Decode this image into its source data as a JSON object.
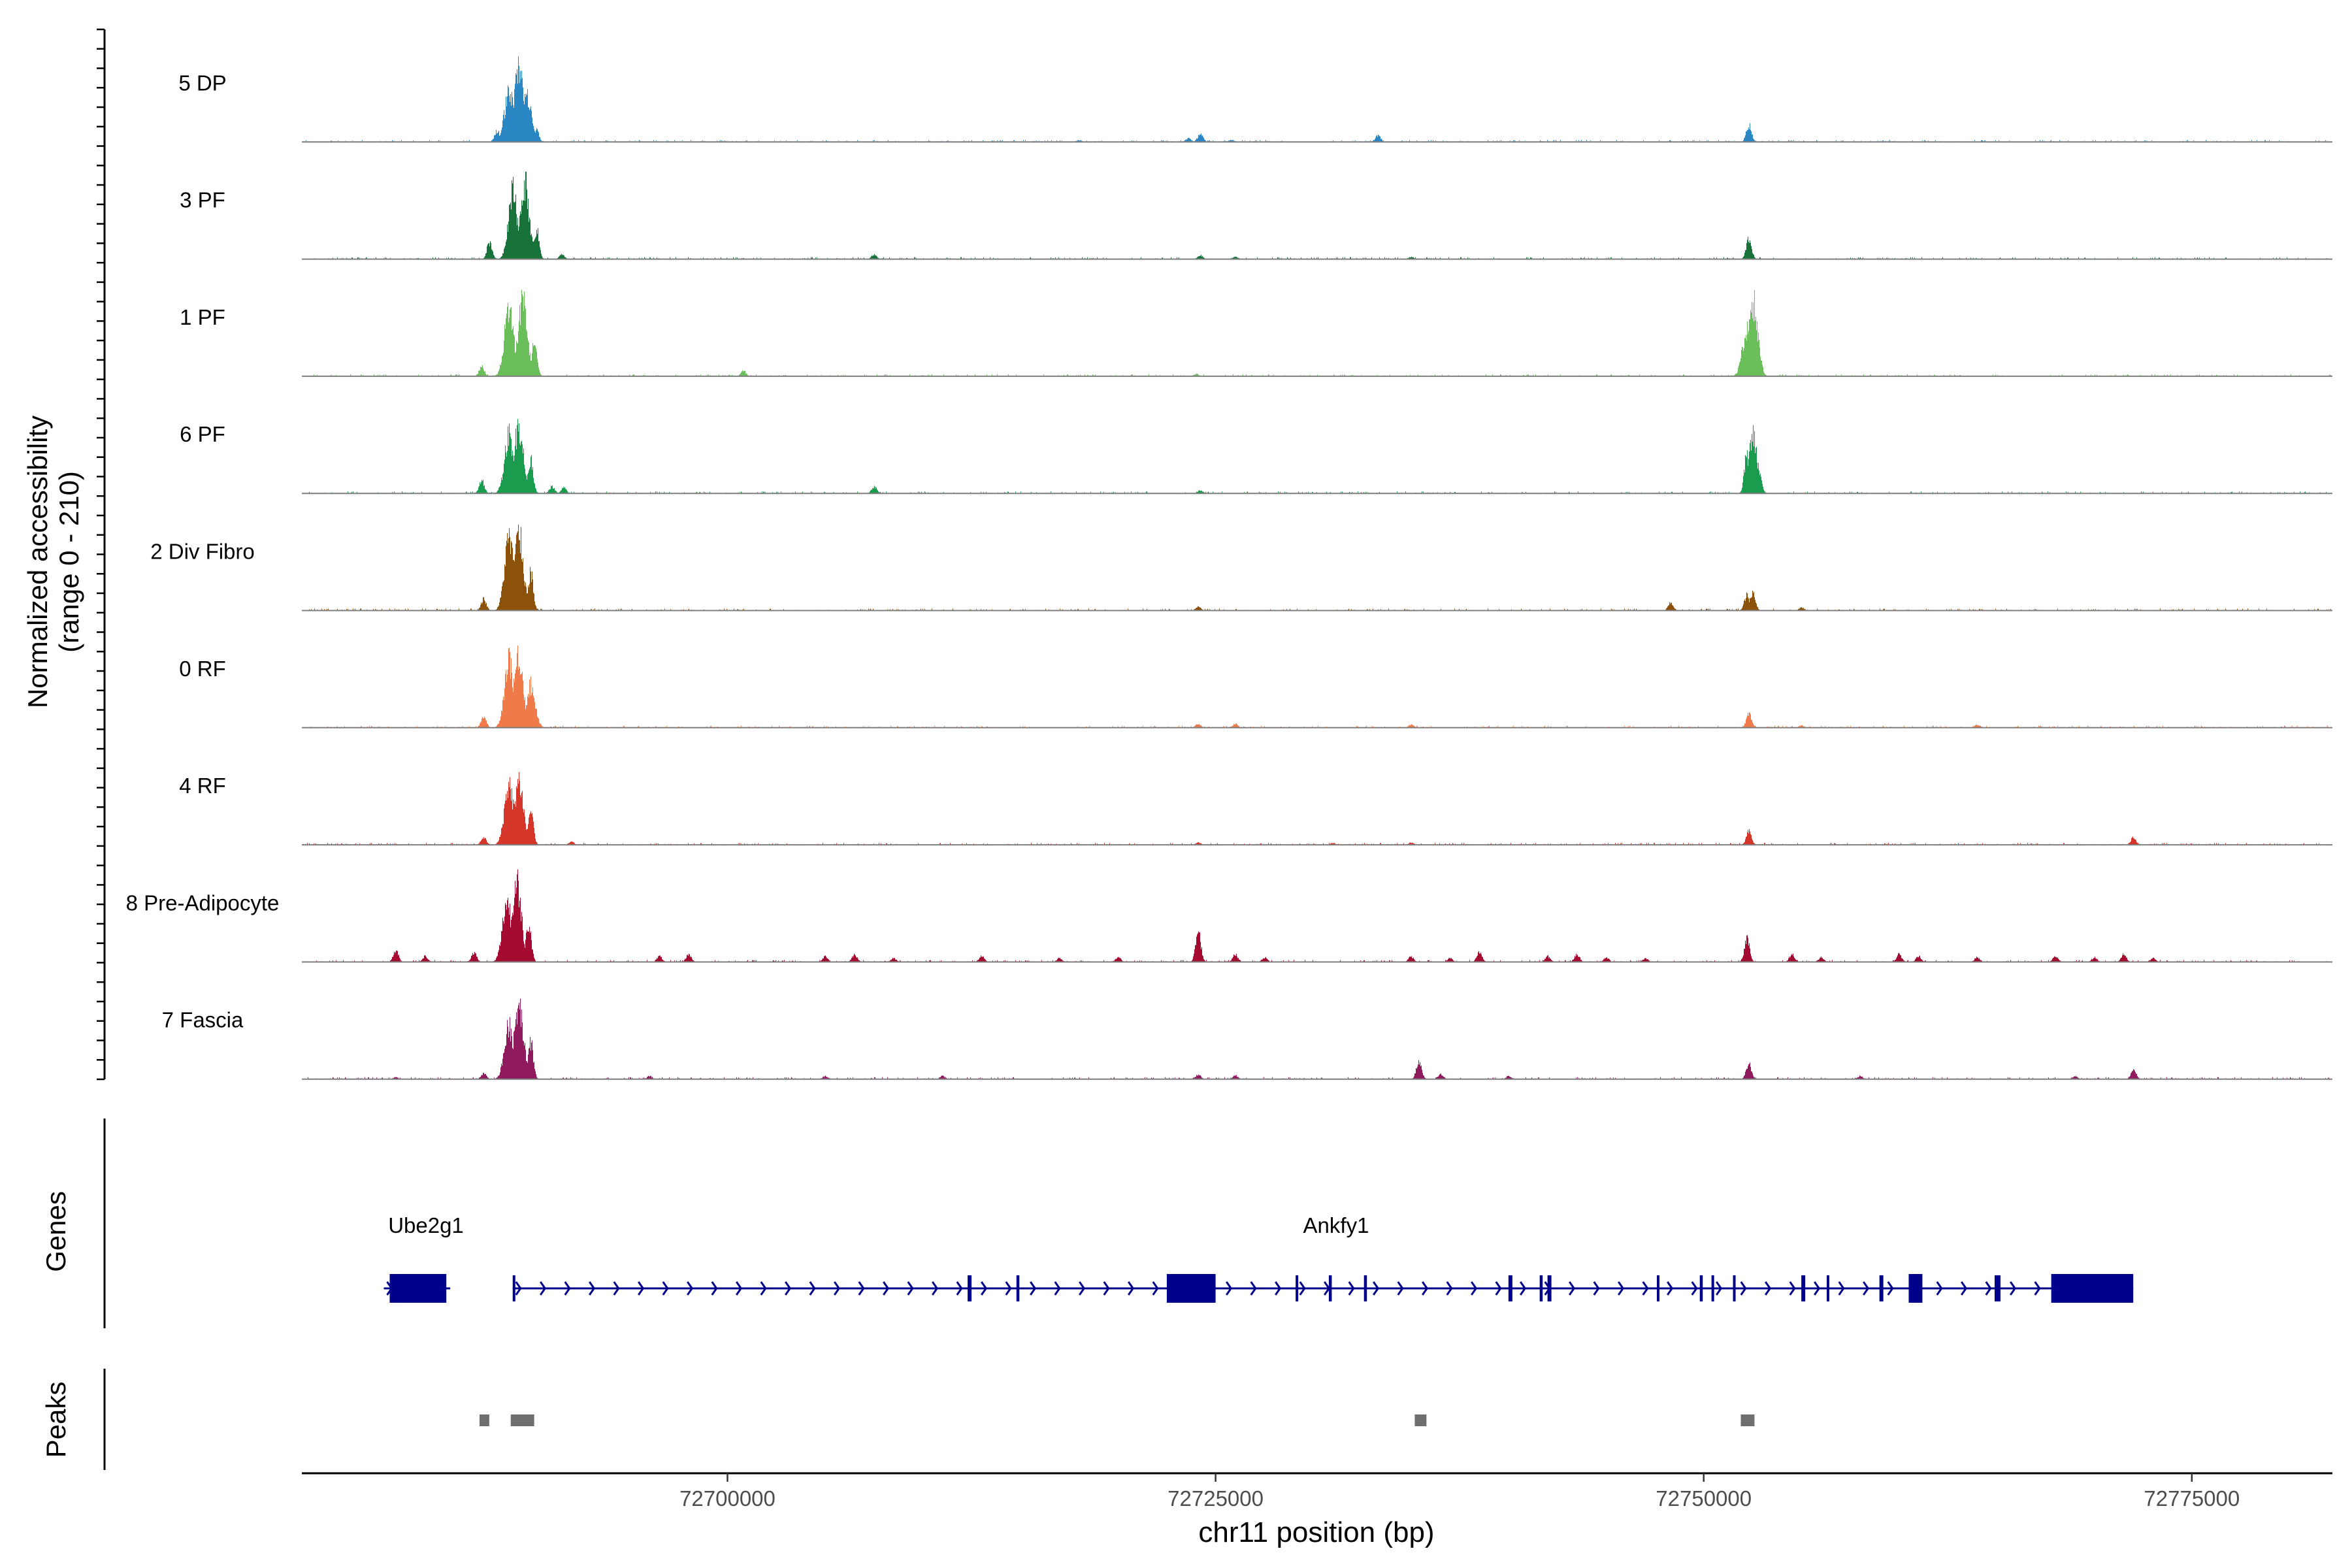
{
  "chart_data": {
    "type": "area",
    "title": "",
    "chromosome": "chr11",
    "xlabel": "chr11 position (bp)",
    "ylabel": [
      "Normalized accessibility",
      "(range 0 - 210)"
    ],
    "y_range": [
      0,
      210
    ],
    "xlim": [
      72678200,
      72782200
    ],
    "x_ticks": [
      72700000,
      72725000,
      72750000,
      72775000
    ],
    "x_tick_labels": [
      "72700000",
      "72725000",
      "72750000",
      "72775000"
    ],
    "tracks": [
      {
        "name": "5 DP",
        "color": "#2b86c4",
        "peaks": [
          [
            72688200,
            30
          ],
          [
            72688800,
            130
          ],
          [
            72689300,
            200
          ],
          [
            72689700,
            120
          ],
          [
            72690200,
            30
          ],
          [
            72718000,
            5
          ],
          [
            72723600,
            10
          ],
          [
            72724200,
            22
          ],
          [
            72725800,
            6
          ],
          [
            72733300,
            18
          ],
          [
            72752300,
            45
          ]
        ]
      },
      {
        "name": "3 PF",
        "color": "#17733a",
        "peaks": [
          [
            72687800,
            45
          ],
          [
            72689000,
            180
          ],
          [
            72689600,
            200
          ],
          [
            72690200,
            80
          ],
          [
            72691500,
            12
          ],
          [
            72707500,
            12
          ],
          [
            72724200,
            10
          ],
          [
            72726000,
            6
          ],
          [
            72735000,
            6
          ],
          [
            72752300,
            55
          ]
        ]
      },
      {
        "name": "1 PF",
        "color": "#6bbf5a",
        "peaks": [
          [
            72687400,
            25
          ],
          [
            72688800,
            180
          ],
          [
            72689500,
            200
          ],
          [
            72690100,
            90
          ],
          [
            72700800,
            14
          ],
          [
            72724000,
            6
          ],
          [
            72752200,
            120
          ],
          [
            72752500,
            200
          ],
          [
            72752800,
            80
          ]
        ]
      },
      {
        "name": "6 PF",
        "color": "#1a9c4e",
        "peaks": [
          [
            72687400,
            35
          ],
          [
            72688800,
            150
          ],
          [
            72689300,
            180
          ],
          [
            72689900,
            90
          ],
          [
            72691000,
            18
          ],
          [
            72691600,
            15
          ],
          [
            72707500,
            18
          ],
          [
            72724200,
            8
          ],
          [
            72752200,
            100
          ],
          [
            72752500,
            150
          ],
          [
            72752800,
            60
          ]
        ]
      },
      {
        "name": "2 Div Fibro",
        "color": "#8c510a",
        "peaks": [
          [
            72687500,
            30
          ],
          [
            72688800,
            190
          ],
          [
            72689300,
            200
          ],
          [
            72689900,
            100
          ],
          [
            72724100,
            10
          ],
          [
            72748300,
            20
          ],
          [
            72752200,
            40
          ],
          [
            72752500,
            50
          ],
          [
            72755000,
            8
          ]
        ]
      },
      {
        "name": "0 RF",
        "color": "#f07a4a",
        "peaks": [
          [
            72687500,
            30
          ],
          [
            72688800,
            180
          ],
          [
            72689300,
            190
          ],
          [
            72689900,
            110
          ],
          [
            72724100,
            10
          ],
          [
            72726000,
            10
          ],
          [
            72735000,
            8
          ],
          [
            72752300,
            35
          ],
          [
            72755000,
            6
          ],
          [
            72764000,
            8
          ]
        ]
      },
      {
        "name": "4 RF",
        "color": "#d6352a",
        "peaks": [
          [
            72687500,
            20
          ],
          [
            72688800,
            160
          ],
          [
            72689300,
            170
          ],
          [
            72689900,
            90
          ],
          [
            72692000,
            8
          ],
          [
            72724100,
            6
          ],
          [
            72731000,
            5
          ],
          [
            72735000,
            6
          ],
          [
            72752300,
            35
          ],
          [
            72772000,
            20
          ]
        ]
      },
      {
        "name": "8 Pre-Adipocyte",
        "color": "#a50b30",
        "peaks": [
          [
            72683000,
            30
          ],
          [
            72684500,
            15
          ],
          [
            72687000,
            25
          ],
          [
            72688700,
            160
          ],
          [
            72689200,
            210
          ],
          [
            72689800,
            100
          ],
          [
            72696500,
            15
          ],
          [
            72698000,
            20
          ],
          [
            72705000,
            15
          ],
          [
            72706500,
            20
          ],
          [
            72708500,
            10
          ],
          [
            72713000,
            15
          ],
          [
            72717000,
            10
          ],
          [
            72720000,
            12
          ],
          [
            72724100,
            80
          ],
          [
            72726000,
            20
          ],
          [
            72727500,
            12
          ],
          [
            72735000,
            15
          ],
          [
            72737000,
            10
          ],
          [
            72738500,
            25
          ],
          [
            72742000,
            15
          ],
          [
            72743500,
            20
          ],
          [
            72745000,
            12
          ],
          [
            72747000,
            10
          ],
          [
            72752200,
            60
          ],
          [
            72754500,
            20
          ],
          [
            72756000,
            12
          ],
          [
            72760000,
            20
          ],
          [
            72761000,
            15
          ],
          [
            72764000,
            12
          ],
          [
            72768000,
            15
          ],
          [
            72770000,
            12
          ],
          [
            72771500,
            20
          ],
          [
            72773000,
            10
          ]
        ]
      },
      {
        "name": "7 Fascia",
        "color": "#8f1a5e",
        "peaks": [
          [
            72683000,
            5
          ],
          [
            72687500,
            15
          ],
          [
            72688800,
            140
          ],
          [
            72689300,
            190
          ],
          [
            72689900,
            100
          ],
          [
            72696000,
            8
          ],
          [
            72705000,
            8
          ],
          [
            72711000,
            8
          ],
          [
            72724100,
            12
          ],
          [
            72726000,
            10
          ],
          [
            72735400,
            45
          ],
          [
            72736500,
            12
          ],
          [
            72740000,
            8
          ],
          [
            72752300,
            40
          ],
          [
            72758000,
            8
          ],
          [
            72769000,
            8
          ],
          [
            72772000,
            25
          ]
        ]
      }
    ],
    "genes": [
      {
        "name": "Ube2g1",
        "strand": "+",
        "start": 72682400,
        "end": 72685800,
        "exons": [
          [
            72682700,
            72685600
          ]
        ]
      },
      {
        "name": "Ankfy1",
        "strand": "+",
        "start": 72689000,
        "end": 72772000,
        "exons": [
          [
            72689000,
            72689100
          ],
          [
            72712300,
            72712500
          ],
          [
            72714800,
            72714950
          ],
          [
            72722500,
            72725000
          ],
          [
            72729100,
            72729200
          ],
          [
            72730800,
            72730950
          ],
          [
            72732600,
            72732750
          ],
          [
            72740000,
            72740200
          ],
          [
            72741600,
            72741750
          ],
          [
            72742000,
            72742200
          ],
          [
            72747600,
            72747700
          ],
          [
            72749800,
            72749950
          ],
          [
            72750400,
            72750500
          ],
          [
            72751500,
            72751600
          ],
          [
            72755000,
            72755200
          ],
          [
            72756300,
            72756400
          ],
          [
            72759000,
            72759200
          ],
          [
            72760500,
            72761200
          ],
          [
            72764900,
            72765200
          ],
          [
            72767800,
            72772000
          ]
        ]
      }
    ],
    "peak_regions": [
      [
        72687300,
        72687800
      ],
      [
        72688900,
        72690100
      ],
      [
        72735200,
        72735800
      ],
      [
        72751900,
        72752600
      ]
    ],
    "panel_labels": {
      "genes": "Genes",
      "peaks": "Peaks"
    }
  }
}
